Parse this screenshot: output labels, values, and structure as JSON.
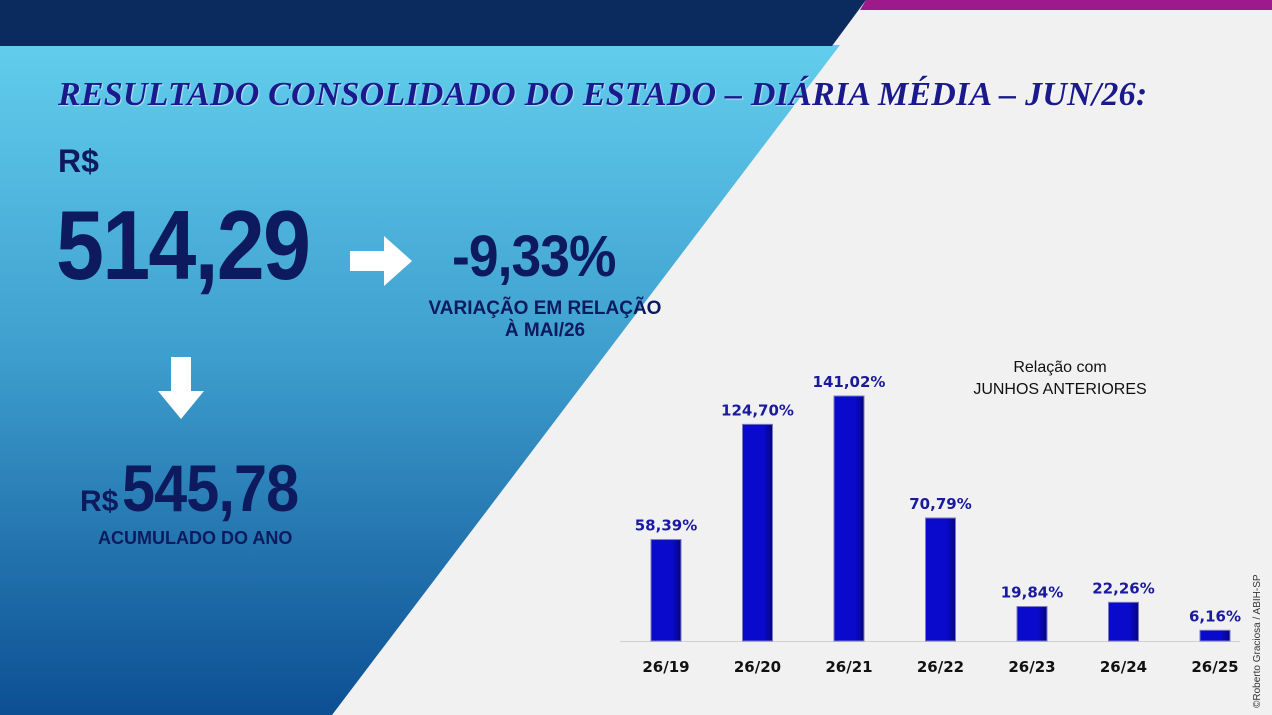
{
  "header": {
    "title": "RESULTADO CONSOLIDADO DO ESTADO – DIÁRIA MÉDIA – JUN/26:"
  },
  "main": {
    "currency": "R$",
    "value": "514,29",
    "variation": "-9,33%",
    "variation_label_line1": "VARIAÇÃO EM RELAÇÃO",
    "variation_label_line2": "À MAI/26",
    "accumulated_currency": "R$",
    "accumulated_value": "545,78",
    "accumulated_label": "ACUMULADO DO ANO"
  },
  "chart_data": {
    "type": "bar",
    "title": "",
    "legend_line1": "Relação com",
    "legend_line2": "JUNHOS ANTERIORES",
    "categories": [
      "26/19",
      "26/20",
      "26/21",
      "26/22",
      "26/23",
      "26/24",
      "26/25"
    ],
    "values": [
      58.39,
      124.7,
      141.02,
      70.79,
      19.84,
      22.26,
      6.16
    ],
    "data_labels": [
      "58,39%",
      "124,70%",
      "141,02%",
      "70,79%",
      "19,84%",
      "22,26%",
      "6,16%"
    ],
    "ylim": [
      0,
      141.02
    ],
    "grid": false,
    "colors": {
      "bar": "#0a0acc",
      "bar_dark": "#050580",
      "label": "#1a1a9e"
    }
  },
  "credit": "©Roberto Graciosa / ABIH-SP",
  "colors": {
    "navy": "#0d1a5e",
    "top_bar": "#0b2b5e",
    "magenta": "#9c1a8c",
    "title": "#1a1a8c"
  }
}
